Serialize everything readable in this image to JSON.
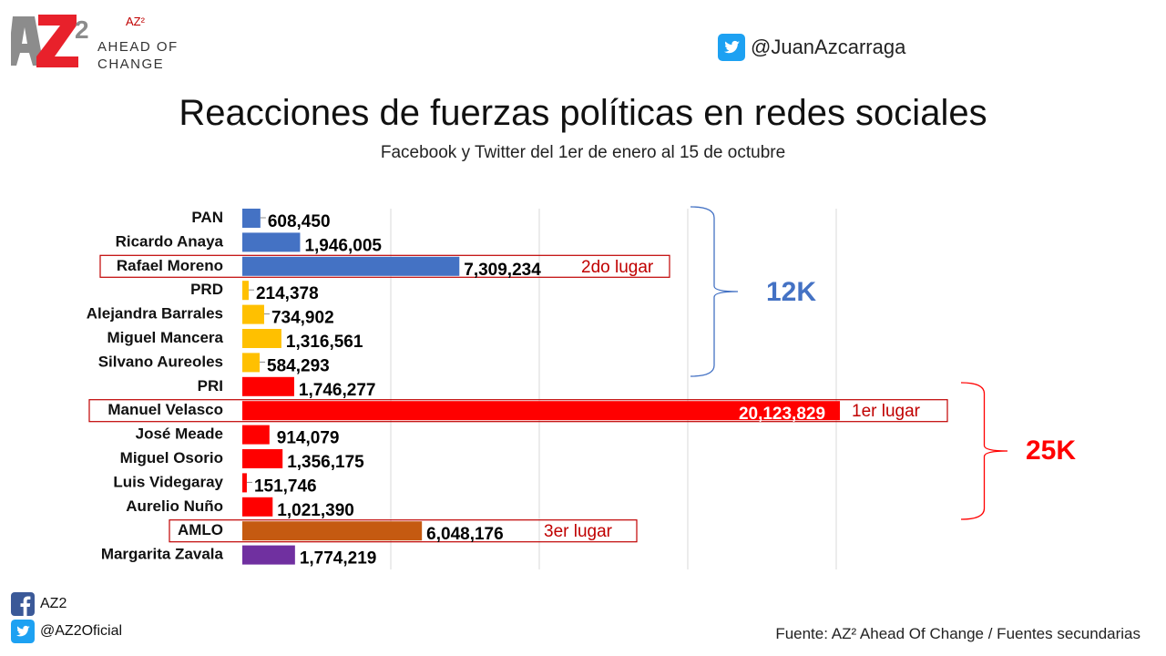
{
  "logo": {
    "small": "AZ²",
    "line1": "AHEAD OF",
    "line2": "CHANGE"
  },
  "header": {
    "twitter_handle": "@JuanAzcarraga"
  },
  "chart_data": {
    "type": "bar",
    "orientation": "horizontal",
    "title": "Reacciones de fuerzas políticas en redes sociales",
    "subtitle": "Facebook y Twitter del 1er de enero al 15 de octubre",
    "categories": [
      "PAN",
      "Ricardo Anaya",
      "Rafael Moreno",
      "PRD",
      "Alejandra Barrales",
      "Miguel Mancera",
      "Silvano Aureoles",
      "PRI",
      "Manuel Velasco",
      "José Meade",
      "Miguel Osorio",
      "Luis Videgaray",
      "Aurelio Nuño",
      "AMLO",
      "Margarita Zavala"
    ],
    "values": [
      608450,
      1946005,
      7309234,
      214378,
      734902,
      1316561,
      584293,
      1746277,
      20123829,
      914079,
      1356175,
      151746,
      1021390,
      6048176,
      1774219
    ],
    "labels": [
      "608,450",
      "1,946,005",
      "7,309,234",
      "214,378",
      "734,902",
      "1,316,561",
      "584,293",
      "1,746,277",
      "20,123,829",
      "914,079",
      "1,356,175",
      "151,746",
      "1,021,390",
      "6,048,176",
      "1,774,219"
    ],
    "colors": [
      "#4472c4",
      "#4472c4",
      "#4472c4",
      "#ffc000",
      "#ffc000",
      "#ffc000",
      "#ffc000",
      "#ff0000",
      "#ff0000",
      "#ff0000",
      "#ff0000",
      "#ff0000",
      "#ff0000",
      "#c55a11",
      "#7030a0"
    ],
    "xlim": [
      0,
      20000000
    ],
    "grid": true,
    "highlights": [
      {
        "index": 8,
        "text": "1er lugar"
      },
      {
        "index": 2,
        "text": "2do lugar"
      },
      {
        "index": 13,
        "text": "3er lugar"
      }
    ],
    "groups": [
      {
        "label": "12K",
        "from": 0,
        "to": 6,
        "color": "#4472c4"
      },
      {
        "label": "25K",
        "from": 7,
        "to": 12,
        "color": "#ff0000"
      }
    ]
  },
  "footer": {
    "facebook_label": "AZ2",
    "twitter_label": "@AZ2Oficial",
    "source": "Fuente: AZ² Ahead Of Change / Fuentes secundarias"
  },
  "colors": {
    "facebook": "#3b5998",
    "twitter": "#1da1f2",
    "accent_red": "#c00000"
  }
}
